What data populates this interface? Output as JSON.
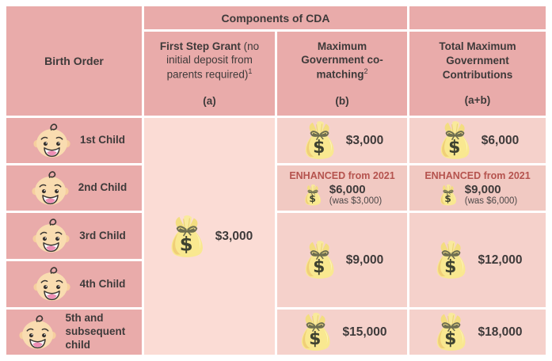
{
  "colors": {
    "header_pink": "#e9abaa",
    "cell_pink": "#f5d1cb",
    "grant_cell_pink": "#fbdcd5",
    "enhanced_cell_pink": "#f1c9c2",
    "enhanced_text": "#b5534e",
    "text_dark": "#3e3a3a",
    "money_bag_yellow": "#f9e890",
    "baby_skin": "#f9dcb0"
  },
  "header": {
    "components_title": "Components of CDA",
    "birth_order": "Birth Order",
    "first_step_grant": {
      "title_bold": "First Step Grant",
      "title_rest": " (no initial deposit from parents required)",
      "footnote": "1",
      "key": "(a)"
    },
    "co_matching": {
      "title": "Maximum Government co-matching",
      "footnote": "2",
      "key": "(b)"
    },
    "total": {
      "title": "Total Maximum Government Contributions",
      "key": "(a+b)"
    }
  },
  "birth_rows": [
    {
      "label": "1st Child"
    },
    {
      "label": "2nd Child"
    },
    {
      "label": "3rd Child"
    },
    {
      "label": "4th Child"
    },
    {
      "label": "5th and subsequent child"
    }
  ],
  "first_step_grant_cell": {
    "value": "$3,000"
  },
  "co_matching_cells": {
    "child1": {
      "value": "$3,000"
    },
    "child2": {
      "enhanced_label": "ENHANCED from 2021",
      "value": "$6,000",
      "was": "(was $3,000)"
    },
    "child3_4": {
      "value": "$9,000"
    },
    "child5": {
      "value": "$15,000"
    }
  },
  "total_cells": {
    "child1": {
      "value": "$6,000"
    },
    "child2": {
      "enhanced_label": "ENHANCED from 2021",
      "value": "$9,000",
      "was": "(was $6,000)"
    },
    "child3_4": {
      "value": "$12,000"
    },
    "child5": {
      "value": "$18,000"
    }
  }
}
